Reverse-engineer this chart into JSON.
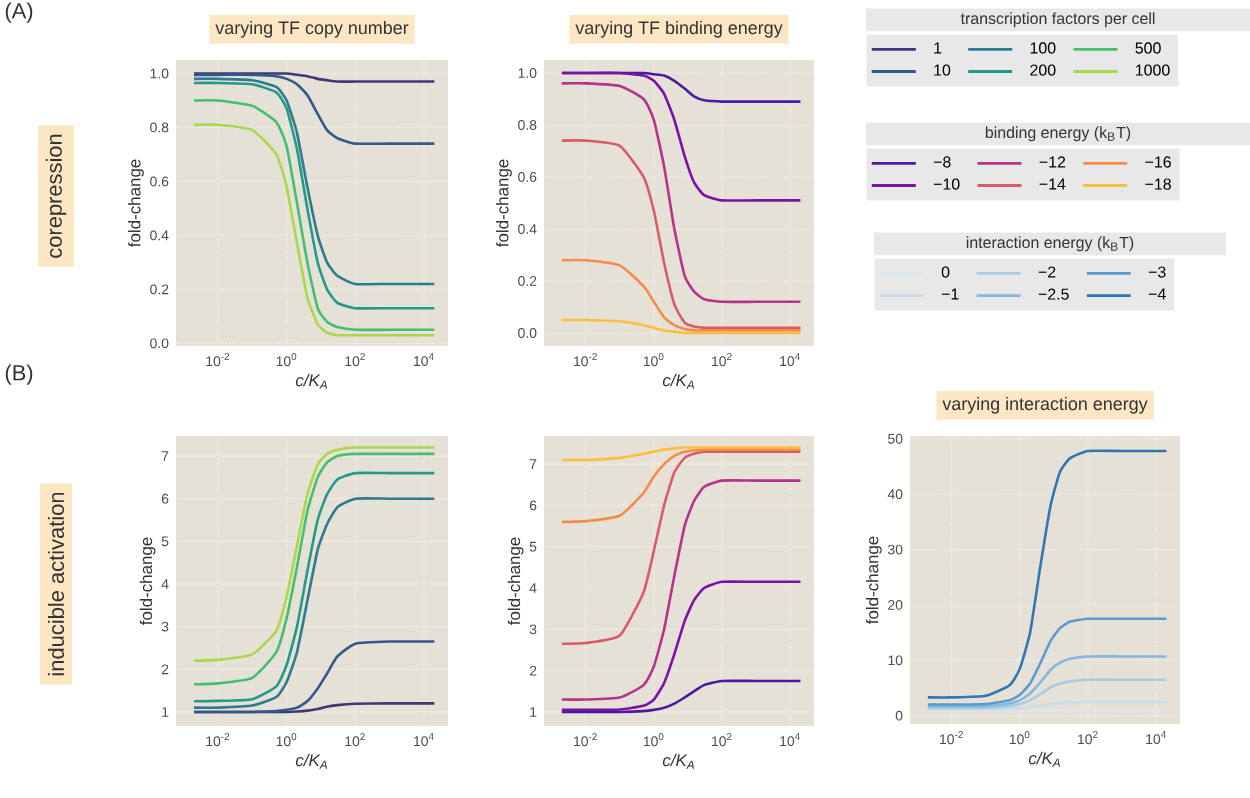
{
  "chart_data": [
    {
      "type": "line",
      "title": "varying TF copy number",
      "xlabel": "c/K$_{A}$",
      "ylabel": "fold-change",
      "legend_title": "transcription factors per cell",
      "legend": "right",
      "log": "x",
      "grid": true,
      "annotations": [
        "(A)",
        "corepression"
      ],
      "xlim": [
        0.0006,
        50000
      ],
      "ylim": [
        -0.01,
        1.05
      ],
      "xticks": [
        {
          "value": 0.01,
          "label": "10$^{-2}$"
        },
        {
          "value": 1,
          "label": "10$^{0}$"
        },
        {
          "value": 100,
          "label": "10$^{2}$"
        },
        {
          "value": 10000,
          "label": "10$^{4}$"
        }
      ],
      "yticks": [
        {
          "value": 0,
          "label": "0.0"
        },
        {
          "value": 0.2,
          "label": "0.2"
        },
        {
          "value": 0.4,
          "label": "0.4"
        },
        {
          "value": 0.6,
          "label": "0.6"
        },
        {
          "value": 0.8,
          "label": "0.8"
        },
        {
          "value": 1,
          "label": "1.0"
        }
      ],
      "x": [
        0.002,
        0.01,
        0.1,
        0.5,
        1,
        2,
        4,
        8,
        15,
        30,
        100,
        1000,
        20000
      ],
      "series": [
        {
          "name": "1",
          "color": "#3e3a78",
          "values": [
            1.0,
            1.0,
            1.0,
            1.0,
            1.0,
            0.995,
            0.99,
            0.98,
            0.975,
            0.97,
            0.97,
            0.97,
            0.97
          ]
        },
        {
          "name": "10",
          "color": "#33588a",
          "values": [
            0.995,
            0.995,
            0.995,
            0.99,
            0.98,
            0.96,
            0.92,
            0.85,
            0.79,
            0.76,
            0.74,
            0.74,
            0.74
          ]
        },
        {
          "name": "100",
          "color": "#2c7b8e",
          "values": [
            0.98,
            0.98,
            0.975,
            0.95,
            0.9,
            0.78,
            0.58,
            0.4,
            0.3,
            0.25,
            0.22,
            0.22,
            0.22
          ]
        },
        {
          "name": "200",
          "color": "#229a87",
          "values": [
            0.965,
            0.965,
            0.96,
            0.93,
            0.87,
            0.72,
            0.5,
            0.3,
            0.2,
            0.15,
            0.13,
            0.13,
            0.13
          ]
        },
        {
          "name": "500",
          "color": "#45bf6e",
          "values": [
            0.9,
            0.9,
            0.88,
            0.82,
            0.73,
            0.52,
            0.3,
            0.13,
            0.08,
            0.06,
            0.05,
            0.05,
            0.05
          ]
        },
        {
          "name": "1000",
          "color": "#a9d84a",
          "values": [
            0.81,
            0.81,
            0.79,
            0.7,
            0.58,
            0.37,
            0.17,
            0.07,
            0.04,
            0.03,
            0.03,
            0.03,
            0.03
          ]
        }
      ]
    },
    {
      "type": "line",
      "title": "varying TF binding energy",
      "xlabel": "c/K$_{A}$",
      "ylabel": "fold-change",
      "legend_title": "binding energy (k$_{B}$T)",
      "legend": "right",
      "log": "x",
      "grid": true,
      "xlim": [
        0.0006,
        50000
      ],
      "ylim": [
        -0.05,
        1.05
      ],
      "xticks": [
        {
          "value": 0.01,
          "label": "10$^{-2}$"
        },
        {
          "value": 1,
          "label": "10$^{0}$"
        },
        {
          "value": 100,
          "label": "10$^{2}$"
        },
        {
          "value": 10000,
          "label": "10$^{4}$"
        }
      ],
      "yticks": [
        {
          "value": 0,
          "label": "0.0"
        },
        {
          "value": 0.2,
          "label": "0.2"
        },
        {
          "value": 0.4,
          "label": "0.4"
        },
        {
          "value": 0.6,
          "label": "0.6"
        },
        {
          "value": 0.8,
          "label": "0.8"
        },
        {
          "value": 1,
          "label": "1.0"
        }
      ],
      "x": [
        0.002,
        0.01,
        0.1,
        0.5,
        1,
        2,
        4,
        8,
        15,
        30,
        100,
        1000,
        20000
      ],
      "series": [
        {
          "name": "−8",
          "color": "#4c1a9e",
          "values": [
            1.0,
            1.0,
            1.0,
            1.0,
            0.995,
            0.99,
            0.97,
            0.94,
            0.91,
            0.895,
            0.89,
            0.89,
            0.89
          ]
        },
        {
          "name": "−10",
          "color": "#7a12a8",
          "values": [
            1.0,
            1.0,
            1.0,
            0.99,
            0.97,
            0.92,
            0.82,
            0.68,
            0.58,
            0.53,
            0.51,
            0.51,
            0.51
          ]
        },
        {
          "name": "−12",
          "color": "#b5348a",
          "values": [
            0.96,
            0.96,
            0.95,
            0.9,
            0.82,
            0.64,
            0.4,
            0.22,
            0.16,
            0.13,
            0.12,
            0.12,
            0.12
          ]
        },
        {
          "name": "−14",
          "color": "#db5a6a",
          "values": [
            0.74,
            0.74,
            0.72,
            0.6,
            0.47,
            0.27,
            0.11,
            0.04,
            0.025,
            0.02,
            0.02,
            0.02,
            0.02
          ]
        },
        {
          "name": "−16",
          "color": "#f48c48",
          "values": [
            0.28,
            0.28,
            0.26,
            0.18,
            0.12,
            0.06,
            0.03,
            0.015,
            0.01,
            0.01,
            0.01,
            0.01,
            0.01
          ]
        },
        {
          "name": "−18",
          "color": "#fbc03a",
          "values": [
            0.05,
            0.05,
            0.045,
            0.03,
            0.02,
            0.01,
            0.005,
            0.0,
            0.0,
            0.0,
            0.0,
            0.0,
            0.0
          ]
        }
      ]
    },
    {
      "type": "line",
      "xlabel": "c/K$_{A}$",
      "ylabel": "fold-change",
      "log": "x",
      "grid": true,
      "annotations": [
        "(B)",
        "inducible activation"
      ],
      "xlim": [
        0.0006,
        50000
      ],
      "ylim": [
        0.67,
        7.47
      ],
      "xticks": [
        {
          "value": 0.01,
          "label": "10$^{-2}$"
        },
        {
          "value": 1,
          "label": "10$^{0}$"
        },
        {
          "value": 100,
          "label": "10$^{2}$"
        },
        {
          "value": 10000,
          "label": "10$^{4}$"
        }
      ],
      "yticks": [
        1,
        2,
        3,
        4,
        5,
        6,
        7
      ],
      "x": [
        0.002,
        0.01,
        0.1,
        0.5,
        1,
        2,
        4,
        8,
        15,
        30,
        100,
        1000,
        20000
      ],
      "series": [
        {
          "color": "#3e3a78",
          "values": [
            1.0,
            1.0,
            1.0,
            1.0,
            1.0,
            1.01,
            1.03,
            1.07,
            1.12,
            1.16,
            1.19,
            1.2,
            1.2
          ]
        },
        {
          "color": "#33588a",
          "values": [
            1.0,
            1.0,
            1.0,
            1.02,
            1.05,
            1.1,
            1.25,
            1.55,
            1.9,
            2.3,
            2.6,
            2.65,
            2.65
          ]
        },
        {
          "color": "#2c7b8e",
          "values": [
            1.1,
            1.1,
            1.15,
            1.35,
            1.7,
            2.4,
            3.6,
            4.8,
            5.4,
            5.8,
            6.0,
            6.0,
            6.0
          ]
        },
        {
          "color": "#229a87",
          "values": [
            1.25,
            1.26,
            1.3,
            1.6,
            2.1,
            3.0,
            4.3,
            5.5,
            6.1,
            6.45,
            6.6,
            6.6,
            6.6
          ]
        },
        {
          "color": "#45bf6e",
          "values": [
            1.65,
            1.67,
            1.8,
            2.4,
            3.2,
            4.4,
            5.7,
            6.5,
            6.85,
            7.0,
            7.05,
            7.05,
            7.05
          ]
        },
        {
          "color": "#a9d84a",
          "values": [
            2.2,
            2.22,
            2.35,
            2.9,
            3.7,
            4.9,
            6.1,
            6.8,
            7.05,
            7.15,
            7.2,
            7.2,
            7.2
          ]
        }
      ]
    },
    {
      "type": "line",
      "xlabel": "c/K$_{A}$",
      "ylabel": "fold-change",
      "log": "x",
      "grid": true,
      "xlim": [
        0.0006,
        50000
      ],
      "ylim": [
        0.66,
        7.68
      ],
      "xticks": [
        {
          "value": 0.01,
          "label": "10$^{-2}$"
        },
        {
          "value": 1,
          "label": "10$^{0}$"
        },
        {
          "value": 100,
          "label": "10$^{2}$"
        },
        {
          "value": 10000,
          "label": "10$^{4}$"
        }
      ],
      "yticks": [
        1,
        2,
        3,
        4,
        5,
        6,
        7
      ],
      "x": [
        0.002,
        0.01,
        0.1,
        0.5,
        1,
        2,
        4,
        8,
        15,
        30,
        100,
        1000,
        20000
      ],
      "series": [
        {
          "color": "#4c1a9e",
          "values": [
            1.0,
            1.0,
            1.0,
            1.02,
            1.05,
            1.1,
            1.2,
            1.35,
            1.5,
            1.65,
            1.75,
            1.75,
            1.75
          ]
        },
        {
          "color": "#7a12a8",
          "values": [
            1.05,
            1.05,
            1.06,
            1.15,
            1.3,
            1.7,
            2.4,
            3.2,
            3.7,
            4.0,
            4.15,
            4.15,
            4.15
          ]
        },
        {
          "color": "#b5348a",
          "values": [
            1.3,
            1.3,
            1.35,
            1.65,
            2.1,
            3.0,
            4.3,
            5.5,
            6.1,
            6.45,
            6.6,
            6.6,
            6.6
          ]
        },
        {
          "color": "#db5a6a",
          "values": [
            2.65,
            2.67,
            2.85,
            3.9,
            4.9,
            6.0,
            6.8,
            7.15,
            7.25,
            7.3,
            7.3,
            7.3,
            7.3
          ]
        },
        {
          "color": "#f48c48",
          "values": [
            5.6,
            5.62,
            5.75,
            6.3,
            6.7,
            7.0,
            7.2,
            7.3,
            7.33,
            7.35,
            7.35,
            7.35,
            7.35
          ]
        },
        {
          "color": "#fbc03a",
          "values": [
            7.1,
            7.1,
            7.15,
            7.25,
            7.3,
            7.35,
            7.38,
            7.4,
            7.4,
            7.4,
            7.4,
            7.4,
            7.4
          ]
        }
      ]
    },
    {
      "type": "line",
      "title": "varying interaction energy",
      "xlabel": "c/K$_{A}$",
      "ylabel": "fold-change",
      "legend_title": "interaction energy (k$_{B}$T)",
      "legend": "top",
      "log": "x",
      "grid": true,
      "xlim": [
        0.0006,
        50000
      ],
      "ylim": [
        -1.5,
        50.5
      ],
      "xticks": [
        {
          "value": 0.01,
          "label": "10$^{-2}$"
        },
        {
          "value": 1,
          "label": "10$^{0}$"
        },
        {
          "value": 100,
          "label": "10$^{2}$"
        },
        {
          "value": 10000,
          "label": "10$^{4}$"
        }
      ],
      "yticks": [
        0,
        10,
        20,
        30,
        40,
        50
      ],
      "x": [
        0.002,
        0.01,
        0.1,
        0.5,
        1,
        2,
        4,
        8,
        15,
        30,
        100,
        1000,
        20000
      ],
      "series": [
        {
          "name": "0",
          "color": "#dde7f0",
          "values": [
            1.0,
            1.0,
            1.0,
            1.0,
            1.0,
            1.0,
            1.0,
            1.0,
            1.0,
            1.0,
            1.0,
            1.0,
            1.0
          ]
        },
        {
          "name": "−1",
          "color": "#cbdcea",
          "values": [
            1.1,
            1.1,
            1.1,
            1.2,
            1.3,
            1.5,
            1.8,
            2.1,
            2.3,
            2.4,
            2.5,
            2.5,
            2.5
          ]
        },
        {
          "name": "−2",
          "color": "#a8cbe4",
          "values": [
            1.4,
            1.4,
            1.4,
            1.7,
            2.1,
            2.8,
            3.9,
            5.1,
            5.8,
            6.2,
            6.5,
            6.5,
            6.5
          ]
        },
        {
          "name": "−2.5",
          "color": "#86b7dc",
          "values": [
            1.7,
            1.7,
            1.7,
            2.2,
            2.8,
            4.0,
            6.0,
            8.3,
            9.6,
            10.3,
            10.7,
            10.7,
            10.7
          ]
        },
        {
          "name": "−3",
          "color": "#5a9ccd",
          "values": [
            2.0,
            2.0,
            2.1,
            2.8,
            3.8,
            5.8,
            9.5,
            13.5,
            15.8,
            17,
            17.5,
            17.5,
            17.5
          ]
        },
        {
          "name": "−4",
          "color": "#2f78b4",
          "values": [
            3.3,
            3.3,
            3.6,
            5.5,
            8.5,
            15,
            27,
            38,
            44,
            46.5,
            47.8,
            47.8,
            47.8
          ]
        }
      ]
    }
  ]
}
